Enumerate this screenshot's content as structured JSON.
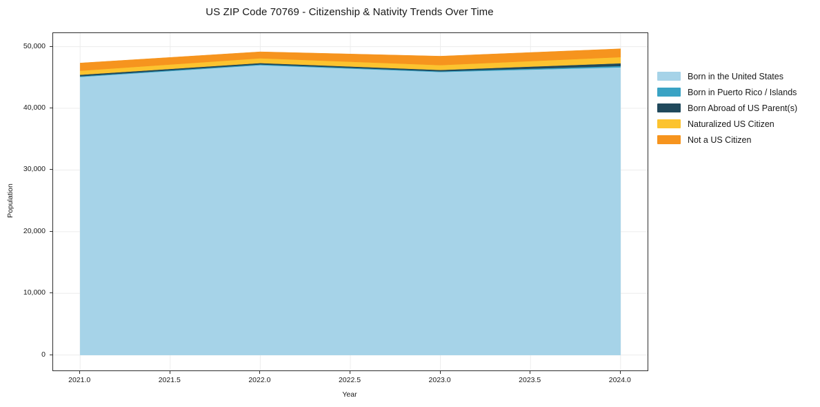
{
  "chart_data": {
    "type": "area",
    "stacked": true,
    "title": "US ZIP Code 70769 - Citizenship & Nativity Trends Over Time",
    "xlabel": "Year",
    "ylabel": "Population",
    "x": [
      2021,
      2022,
      2023,
      2024
    ],
    "series": [
      {
        "name": "Born in the United States",
        "color": "#a6d3e8",
        "values": [
          45100,
          47000,
          45900,
          46650
        ]
      },
      {
        "name": "Born in Puerto Rico / Islands",
        "color": "#3aa3c4",
        "values": [
          110,
          130,
          110,
          220
        ]
      },
      {
        "name": "Born Abroad of US Parent(s)",
        "color": "#20495c",
        "values": [
          240,
          220,
          220,
          440
        ]
      },
      {
        "name": "Naturalized US Citizen",
        "color": "#fcc32f",
        "values": [
          650,
          770,
          780,
          1000
        ]
      },
      {
        "name": "Not a US Citizen",
        "color": "#f6941e",
        "values": [
          1250,
          1050,
          1450,
          1350
        ]
      }
    ],
    "totals": [
      47350,
      49170,
      48460,
      49660
    ],
    "xlim": [
      2020.85,
      2024.15
    ],
    "ylim": [
      -2500,
      52200
    ],
    "xticks": {
      "values": [
        2021.0,
        2021.5,
        2022.0,
        2022.5,
        2023.0,
        2023.5,
        2024.0
      ],
      "labels": [
        "2021.0",
        "2021.5",
        "2022.0",
        "2022.5",
        "2023.0",
        "2023.5",
        "2024.0"
      ]
    },
    "yticks": {
      "values": [
        0,
        10000,
        20000,
        30000,
        40000,
        50000
      ],
      "labels": [
        "0",
        "10,000",
        "20,000",
        "30,000",
        "40,000",
        "50,000"
      ]
    },
    "grid": true,
    "grid_color": "#ececec",
    "legend_position": "right-outside",
    "legend_entries": [
      "Born in the United States",
      "Born in Puerto Rico / Islands",
      "Born Abroad of US Parent(s)",
      "Naturalized US Citizen",
      "Not a US Citizen"
    ]
  }
}
